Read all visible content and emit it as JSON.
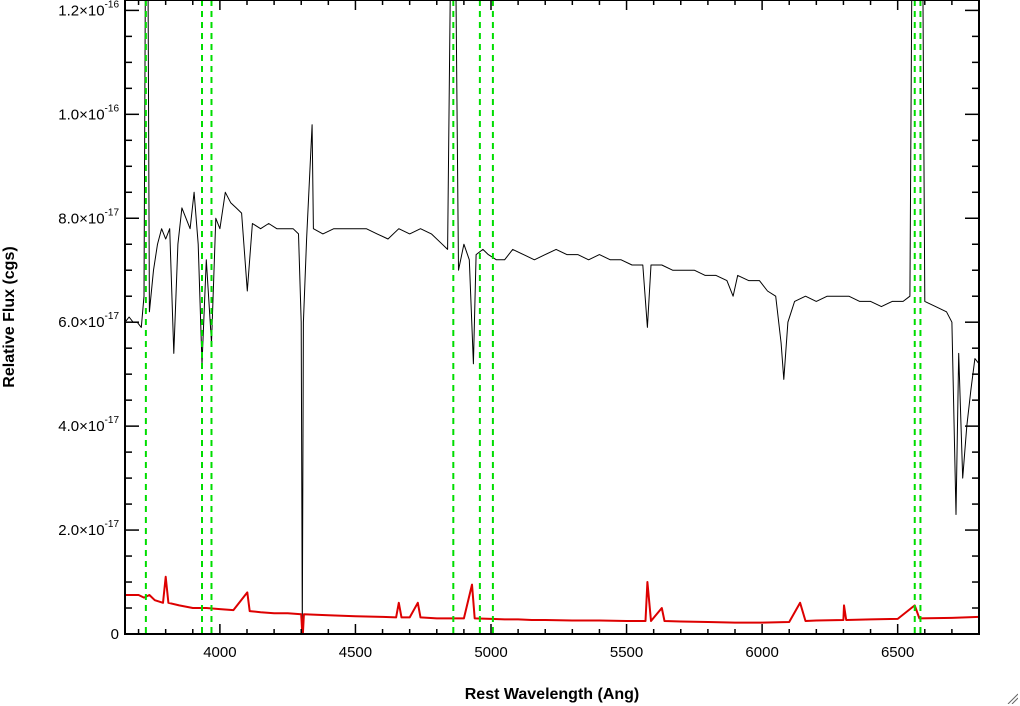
{
  "chart_data": {
    "type": "line",
    "title": "",
    "xlabel": "Rest Wavelength (Ang)",
    "ylabel": "Relative Flux (cgs)",
    "xlim": [
      3650,
      6800
    ],
    "ylim": [
      0,
      1.22e-16
    ],
    "x_ticks": [
      {
        "value": 4000,
        "label": "4000"
      },
      {
        "value": 4500,
        "label": "4500"
      },
      {
        "value": 5000,
        "label": "5000"
      },
      {
        "value": 5500,
        "label": "5500"
      },
      {
        "value": 6000,
        "label": "6000"
      },
      {
        "value": 6500,
        "label": "6500"
      }
    ],
    "y_ticks": [
      {
        "value": 0,
        "mantissa": "0",
        "exponent": ""
      },
      {
        "value": 2e-17,
        "mantissa": "2.0×10",
        "exponent": "-17"
      },
      {
        "value": 4e-17,
        "mantissa": "4.0×10",
        "exponent": "-17"
      },
      {
        "value": 6e-17,
        "mantissa": "6.0×10",
        "exponent": "-17"
      },
      {
        "value": 8e-17,
        "mantissa": "8.0×10",
        "exponent": "-17"
      },
      {
        "value": 1e-16,
        "mantissa": "1.0×10",
        "exponent": "-16"
      },
      {
        "value": 1.2e-16,
        "mantissa": "1.2×10",
        "exponent": "-16"
      }
    ],
    "grid": false,
    "vertical_lines": {
      "color": "#00dd00",
      "style": "dashed",
      "x": [
        3727,
        3934,
        3969,
        4861,
        4959,
        5007,
        6563,
        6584
      ]
    },
    "series": [
      {
        "color": "#000000",
        "points": [
          [
            3650,
            6e-17
          ],
          [
            3665,
            6.1e-17
          ],
          [
            3680,
            6e-17
          ],
          [
            3695,
            6e-17
          ],
          [
            3710,
            5.9e-17
          ],
          [
            3720,
            6.5e-17
          ],
          [
            3727,
            1.5e-16
          ],
          [
            3733,
            1.5e-16
          ],
          [
            3740,
            6.2e-17
          ],
          [
            3755,
            7e-17
          ],
          [
            3770,
            7.5e-17
          ],
          [
            3785,
            7.8e-17
          ],
          [
            3800,
            7.6e-17
          ],
          [
            3815,
            7.8e-17
          ],
          [
            3830,
            5.4e-17
          ],
          [
            3845,
            7.5e-17
          ],
          [
            3860,
            8.2e-17
          ],
          [
            3875,
            8e-17
          ],
          [
            3890,
            7.8e-17
          ],
          [
            3905,
            8.5e-17
          ],
          [
            3920,
            7.5e-17
          ],
          [
            3934,
            5.2e-17
          ],
          [
            3950,
            7.2e-17
          ],
          [
            3969,
            5.6e-17
          ],
          [
            3985,
            8e-17
          ],
          [
            4000,
            7.8e-17
          ],
          [
            4020,
            8.5e-17
          ],
          [
            4040,
            8.3e-17
          ],
          [
            4060,
            8.2e-17
          ],
          [
            4080,
            8.1e-17
          ],
          [
            4101,
            6.6e-17
          ],
          [
            4120,
            7.9e-17
          ],
          [
            4150,
            7.8e-17
          ],
          [
            4180,
            7.9e-17
          ],
          [
            4210,
            7.8e-17
          ],
          [
            4240,
            7.8e-17
          ],
          [
            4270,
            7.8e-17
          ],
          [
            4290,
            7.7e-17
          ],
          [
            4300,
            6e-17
          ],
          [
            4304,
            1e-18
          ],
          [
            4308,
            6e-17
          ],
          [
            4320,
            7.6e-17
          ],
          [
            4340,
            9.8e-17
          ],
          [
            4345,
            7.8e-17
          ],
          [
            4380,
            7.7e-17
          ],
          [
            4420,
            7.8e-17
          ],
          [
            4460,
            7.8e-17
          ],
          [
            4500,
            7.8e-17
          ],
          [
            4540,
            7.8e-17
          ],
          [
            4580,
            7.7e-17
          ],
          [
            4620,
            7.6e-17
          ],
          [
            4660,
            7.8e-17
          ],
          [
            4700,
            7.7e-17
          ],
          [
            4740,
            7.8e-17
          ],
          [
            4780,
            7.7e-17
          ],
          [
            4820,
            7.5e-17
          ],
          [
            4840,
            7.4e-17
          ],
          [
            4855,
            1.5e-16
          ],
          [
            4866,
            1.5e-16
          ],
          [
            4880,
            7e-17
          ],
          [
            4900,
            7.5e-17
          ],
          [
            4920,
            7.2e-17
          ],
          [
            4935,
            5.2e-17
          ],
          [
            4945,
            7.3e-17
          ],
          [
            4970,
            7.4e-17
          ],
          [
            4990,
            7.3e-17
          ],
          [
            5020,
            7.2e-17
          ],
          [
            5050,
            7.2e-17
          ],
          [
            5080,
            7.4e-17
          ],
          [
            5120,
            7.3e-17
          ],
          [
            5160,
            7.2e-17
          ],
          [
            5200,
            7.3e-17
          ],
          [
            5240,
            7.4e-17
          ],
          [
            5280,
            7.3e-17
          ],
          [
            5320,
            7.3e-17
          ],
          [
            5360,
            7.2e-17
          ],
          [
            5400,
            7.3e-17
          ],
          [
            5440,
            7.2e-17
          ],
          [
            5480,
            7.2e-17
          ],
          [
            5520,
            7.1e-17
          ],
          [
            5560,
            7.1e-17
          ],
          [
            5577,
            5.9e-17
          ],
          [
            5590,
            7.1e-17
          ],
          [
            5630,
            7.1e-17
          ],
          [
            5670,
            7e-17
          ],
          [
            5710,
            7e-17
          ],
          [
            5750,
            7e-17
          ],
          [
            5790,
            6.9e-17
          ],
          [
            5830,
            6.9e-17
          ],
          [
            5870,
            6.8e-17
          ],
          [
            5893,
            6.5e-17
          ],
          [
            5910,
            6.9e-17
          ],
          [
            5950,
            6.8e-17
          ],
          [
            5990,
            6.8e-17
          ],
          [
            6020,
            6.6e-17
          ],
          [
            6050,
            6.5e-17
          ],
          [
            6070,
            5.6e-17
          ],
          [
            6080,
            4.9e-17
          ],
          [
            6095,
            6e-17
          ],
          [
            6120,
            6.4e-17
          ],
          [
            6160,
            6.5e-17
          ],
          [
            6200,
            6.4e-17
          ],
          [
            6240,
            6.5e-17
          ],
          [
            6280,
            6.5e-17
          ],
          [
            6320,
            6.5e-17
          ],
          [
            6360,
            6.4e-17
          ],
          [
            6400,
            6.4e-17
          ],
          [
            6440,
            6.3e-17
          ],
          [
            6480,
            6.4e-17
          ],
          [
            6520,
            6.4e-17
          ],
          [
            6545,
            6.5e-17
          ],
          [
            6555,
            1.5e-16
          ],
          [
            6590,
            1.5e-16
          ],
          [
            6600,
            6.4e-17
          ],
          [
            6640,
            6.3e-17
          ],
          [
            6680,
            6.2e-17
          ],
          [
            6700,
            6e-17
          ],
          [
            6715,
            2.3e-17
          ],
          [
            6725,
            5.4e-17
          ],
          [
            6740,
            3e-17
          ],
          [
            6755,
            4e-17
          ],
          [
            6770,
            4.7e-17
          ],
          [
            6785,
            5.3e-17
          ],
          [
            6800,
            5.2e-17
          ]
        ]
      },
      {
        "color": "#dd0000",
        "points": [
          [
            3650,
            7.5e-18
          ],
          [
            3700,
            7.5e-18
          ],
          [
            3720,
            7e-18
          ],
          [
            3740,
            7.5e-18
          ],
          [
            3760,
            6.5e-18
          ],
          [
            3790,
            6e-18
          ],
          [
            3800,
            1.1e-17
          ],
          [
            3810,
            6e-18
          ],
          [
            3850,
            5.5e-18
          ],
          [
            3900,
            5e-18
          ],
          [
            3950,
            5e-18
          ],
          [
            4000,
            4.8e-18
          ],
          [
            4050,
            4.6e-18
          ],
          [
            4101,
            8e-18
          ],
          [
            4110,
            4.4e-18
          ],
          [
            4150,
            4.2e-18
          ],
          [
            4200,
            4e-18
          ],
          [
            4250,
            4e-18
          ],
          [
            4300,
            3.8e-18
          ],
          [
            4305,
            -1e-18
          ],
          [
            4310,
            3.8e-18
          ],
          [
            4400,
            3.6e-18
          ],
          [
            4500,
            3.4e-18
          ],
          [
            4600,
            3.3e-18
          ],
          [
            4650,
            3.2e-18
          ],
          [
            4660,
            6e-18
          ],
          [
            4670,
            3.2e-18
          ],
          [
            4700,
            3.2e-18
          ],
          [
            4730,
            6e-18
          ],
          [
            4740,
            3.2e-18
          ],
          [
            4800,
            3e-18
          ],
          [
            4900,
            3e-18
          ],
          [
            4930,
            9.5e-18
          ],
          [
            4940,
            3e-18
          ],
          [
            5000,
            2.9e-18
          ],
          [
            5050,
            2.8e-18
          ],
          [
            5100,
            2.8e-18
          ],
          [
            5150,
            2.7e-18
          ],
          [
            5200,
            2.7e-18
          ],
          [
            5300,
            2.6e-18
          ],
          [
            5400,
            2.6e-18
          ],
          [
            5500,
            2.5e-18
          ],
          [
            5570,
            2.5e-18
          ],
          [
            5577,
            1e-17
          ],
          [
            5590,
            2.5e-18
          ],
          [
            5630,
            5e-18
          ],
          [
            5640,
            2.5e-18
          ],
          [
            5700,
            2.4e-18
          ],
          [
            5800,
            2.3e-18
          ],
          [
            5900,
            2.2e-18
          ],
          [
            6000,
            2.2e-18
          ],
          [
            6100,
            2.3e-18
          ],
          [
            6140,
            6e-18
          ],
          [
            6160,
            2.5e-18
          ],
          [
            6200,
            2.6e-18
          ],
          [
            6300,
            2.7e-18
          ],
          [
            6302,
            5.5e-18
          ],
          [
            6310,
            2.7e-18
          ],
          [
            6400,
            2.8e-18
          ],
          [
            6500,
            2.9e-18
          ],
          [
            6563,
            5.5e-18
          ],
          [
            6580,
            3e-18
          ],
          [
            6700,
            3.1e-18
          ],
          [
            6800,
            3.3e-18
          ]
        ]
      }
    ]
  }
}
